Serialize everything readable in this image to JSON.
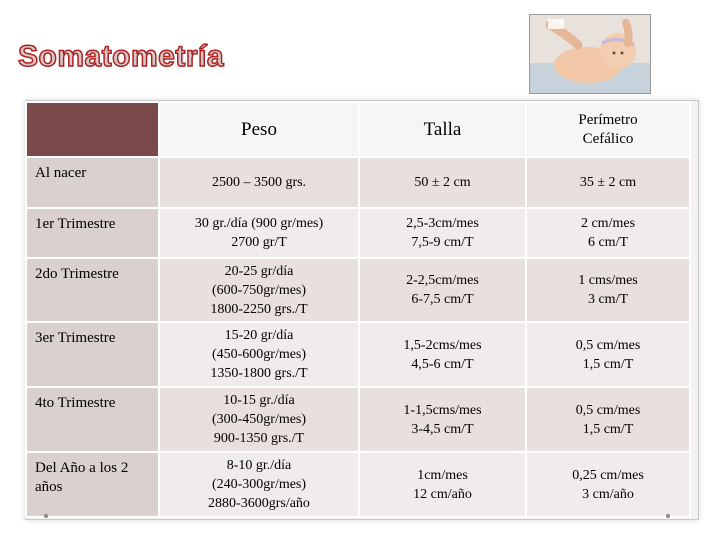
{
  "slide": {
    "title": "Somatometría"
  },
  "table": {
    "headers": [
      "Peso",
      "Talla",
      "Perímetro Cefálico"
    ],
    "rows": [
      {
        "label": "Al nacer",
        "peso": [
          "2500 – 3500 grs."
        ],
        "talla": [
          "50 ± 2 cm"
        ],
        "perimetro": [
          "35 ± 2 cm"
        ]
      },
      {
        "label": "1er Trimestre",
        "peso": [
          "30 gr./día (900 gr/mes)",
          "2700 gr/T"
        ],
        "talla": [
          "2,5-3cm/mes",
          "7,5-9 cm/T"
        ],
        "perimetro": [
          "2 cm/mes",
          "6 cm/T"
        ]
      },
      {
        "label": "2do Trimestre",
        "peso": [
          "20-25 gr/día",
          "(600-750gr/mes)",
          "1800-2250 grs./T"
        ],
        "talla": [
          "2-2,5cm/mes",
          "6-7,5 cm/T"
        ],
        "perimetro": [
          "1 cms/mes",
          "3 cm/T"
        ]
      },
      {
        "label": "3er Trimestre",
        "peso": [
          "15-20 gr/día",
          "(450-600gr/mes)",
          "1350-1800 grs./T"
        ],
        "talla": [
          "1,5-2cms/mes",
          "4,5-6 cm/T"
        ],
        "perimetro": [
          "0,5 cm/mes",
          "1,5 cm/T"
        ]
      },
      {
        "label": "4to Trimestre",
        "peso": [
          "10-15 gr./día",
          "(300-450gr/mes)",
          "900-1350 grs./T"
        ],
        "talla": [
          "1-1,5cms/mes",
          "3-4,5 cm/T"
        ],
        "perimetro": [
          "0,5 cm/mes",
          "1,5 cm/T"
        ]
      },
      {
        "label": "Del Año a los 2 años",
        "peso": [
          "8-10 gr./día",
          "(240-300gr/mes)",
          "2880-3600grs/año"
        ],
        "talla": [
          "1cm/mes",
          "12 cm/año"
        ],
        "perimetro": [
          "0,25 cm/mes",
          "3 cm/año"
        ]
      }
    ]
  },
  "colors": {
    "title_outline": "#b02020",
    "header_corner": "#7a4a4a",
    "row_label_bg": "#d9d0cf"
  },
  "icons": {
    "photo": "baby-head-measurement-photo"
  }
}
